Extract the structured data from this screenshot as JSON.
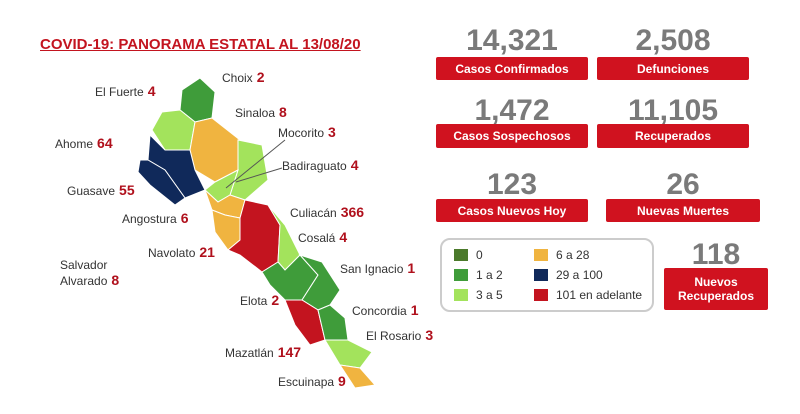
{
  "title": "COVID-19: PANORAMA ESTATAL AL 13/08/20",
  "municipalities": [
    {
      "name": "Choix",
      "value": "2"
    },
    {
      "name": "El Fuerte",
      "value": "4"
    },
    {
      "name": "Sinaloa",
      "value": "8"
    },
    {
      "name": "Ahome",
      "value": "64"
    },
    {
      "name": "Mocorito",
      "value": "3"
    },
    {
      "name": "Badiraguato",
      "value": "4"
    },
    {
      "name": "Guasave",
      "value": "55"
    },
    {
      "name": "Culiacán",
      "value": "366"
    },
    {
      "name": "Angostura",
      "value": "6"
    },
    {
      "name": "Cosalá",
      "value": "4"
    },
    {
      "name": "Navolato",
      "value": "21"
    },
    {
      "name": "Salvador Alvarado",
      "value": "8"
    },
    {
      "name": "San Ignacio",
      "value": "1"
    },
    {
      "name": "Elota",
      "value": "2"
    },
    {
      "name": "Concordia",
      "value": "1"
    },
    {
      "name": "El Rosario",
      "value": "3"
    },
    {
      "name": "Mazatlán",
      "value": "147"
    },
    {
      "name": "Escuinapa",
      "value": "9"
    }
  ],
  "stats": [
    {
      "value": "14,321",
      "label": "Casos Confirmados"
    },
    {
      "value": "2,508",
      "label": "Defunciones"
    },
    {
      "value": "1,472",
      "label": "Casos Sospechosos"
    },
    {
      "value": "11,105",
      "label": "Recuperados"
    },
    {
      "value": "123",
      "label": "Casos Nuevos Hoy"
    },
    {
      "value": "26",
      "label": "Nuevas Muertes"
    },
    {
      "value": "118",
      "label": "Nuevos Recuperados"
    }
  ],
  "legend": [
    {
      "label": "0",
      "color": "#4b7a2b"
    },
    {
      "label": "1 a 2",
      "color": "#3f9c3a"
    },
    {
      "label": "3 a 5",
      "color": "#a3e35c"
    },
    {
      "label": "6 a 28",
      "color": "#f0b440"
    },
    {
      "label": "29 a 100",
      "color": "#10295a"
    },
    {
      "label": "101 en adelante",
      "color": "#c3141f"
    }
  ]
}
